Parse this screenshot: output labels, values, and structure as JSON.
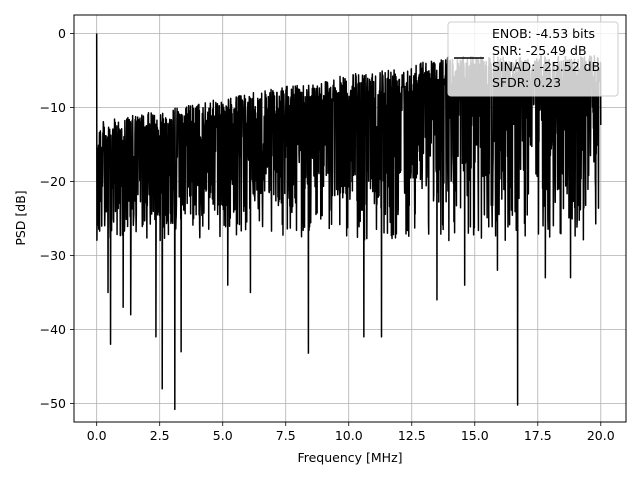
{
  "chart_data": {
    "type": "line",
    "title": "",
    "xlabel": "Frequency [MHz]",
    "ylabel": "PSD [dB]",
    "xlim": [
      -0.9,
      21.0
    ],
    "ylim": [
      -52.5,
      2.5
    ],
    "xticks": [
      0.0,
      2.5,
      5.0,
      7.5,
      10.0,
      12.5,
      15.0,
      17.5,
      20.0
    ],
    "xtick_labels": [
      "0.0",
      "2.5",
      "5.0",
      "7.5",
      "10.0",
      "12.5",
      "15.0",
      "17.5",
      "20.0"
    ],
    "yticks": [
      0,
      -10,
      -20,
      -30,
      -40,
      -50
    ],
    "ytick_labels": [
      "0",
      "−10",
      "−20",
      "−30",
      "−40",
      "−50"
    ],
    "grid": true,
    "line_color": "#000000",
    "legend": {
      "placement": "top-right",
      "entries": [
        "ENOB: -4.53 bits",
        "SNR: -25.49 dB",
        "SINAD: -25.52 dB",
        "SFDR: 0.23"
      ]
    },
    "series": [
      {
        "x_start": 0.0,
        "x_end": 20.0,
        "notable_points": [
          {
            "x": 0.0,
            "y": 0.0
          },
          {
            "x": 0.45,
            "y": -35.0
          },
          {
            "x": 0.55,
            "y": -42.0
          },
          {
            "x": 1.05,
            "y": -37.0
          },
          {
            "x": 1.35,
            "y": -38.0
          },
          {
            "x": 2.35,
            "y": -41.0
          },
          {
            "x": 2.6,
            "y": -48.0
          },
          {
            "x": 3.1,
            "y": -50.8
          },
          {
            "x": 3.35,
            "y": -43.0
          },
          {
            "x": 5.2,
            "y": -34.0
          },
          {
            "x": 6.1,
            "y": -35.0
          },
          {
            "x": 8.4,
            "y": -43.2
          },
          {
            "x": 10.6,
            "y": -41.0
          },
          {
            "x": 11.3,
            "y": -39.0
          },
          {
            "x": 11.3,
            "y": -41.0
          },
          {
            "x": 13.5,
            "y": -36.0
          },
          {
            "x": 14.6,
            "y": -34.0
          },
          {
            "x": 15.9,
            "y": -32.0
          },
          {
            "x": 16.7,
            "y": -50.2
          },
          {
            "x": 17.8,
            "y": -33.0
          },
          {
            "x": 18.8,
            "y": -33.0
          }
        ]
      }
    ]
  }
}
